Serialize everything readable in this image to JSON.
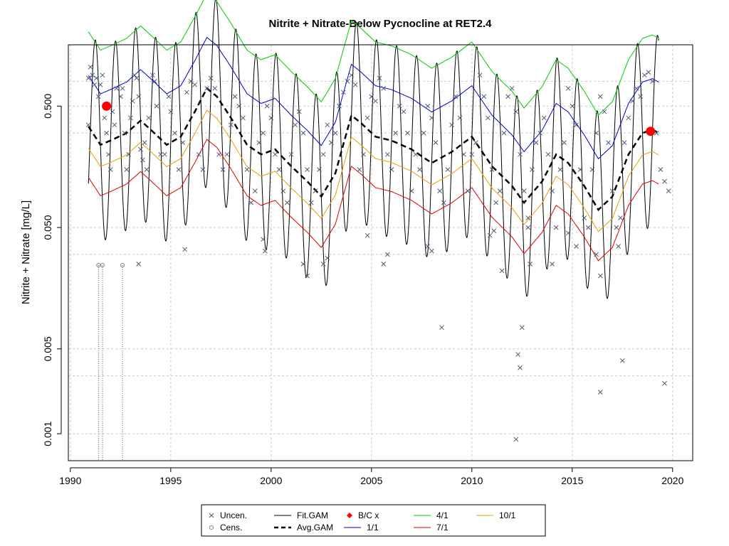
{
  "chart_data": {
    "type": "scatter",
    "title": "Nitrite + Nitrate-Below Pycnocline at RET2.4",
    "xlabel": "",
    "ylabel": "Nitrite + Nitrate [mg/L]",
    "y_scale": "log",
    "xlim": [
      1989.9,
      2021.0
    ],
    "ylim": [
      0.0006,
      1.6
    ],
    "x_ticks": [
      1990,
      1995,
      2000,
      2005,
      2010,
      2015,
      2020
    ],
    "x_tick_labels": [
      "1990",
      "1995",
      "2000",
      "2005",
      "2010",
      "2015",
      "2020"
    ],
    "y_ticks": [
      0.001,
      0.005,
      0.05,
      0.5
    ],
    "y_tick_labels": [
      "0.001",
      "0.005",
      "0.050",
      "0.500"
    ],
    "y_grid": [
      0.001,
      0.003,
      0.005,
      0.03,
      0.05,
      0.3,
      0.5,
      0.8
    ],
    "grid": true,
    "legend": {
      "position": "bottom",
      "entries": [
        {
          "label": "Uncen.",
          "symbol": "x",
          "color": "#4a5a7a"
        },
        {
          "label": "Cens.",
          "symbol": "o",
          "color": "#808080"
        },
        {
          "label": "Fit.GAM",
          "symbol": "line",
          "color": "#000000"
        },
        {
          "label": "Avg.GAM",
          "symbol": "dash",
          "color": "#000000"
        },
        {
          "label": "B/C x",
          "symbol": "diamond",
          "color": "#ff0000"
        },
        {
          "label": "1/1",
          "symbol": "line",
          "color": "#0000cc"
        },
        {
          "label": "4/1",
          "symbol": "line",
          "color": "#00cc00"
        },
        {
          "label": "7/1",
          "symbol": "line",
          "color": "#dd0000"
        },
        {
          "label": "10/1",
          "symbol": "line",
          "color": "#e6a000"
        }
      ]
    },
    "uncensored_points": [
      [
        1990.9,
        0.35
      ],
      [
        1990.9,
        0.85
      ],
      [
        1991.0,
        1.05
      ],
      [
        1991.1,
        0.9
      ],
      [
        1991.2,
        0.75
      ],
      [
        1991.3,
        0.85
      ],
      [
        1991.4,
        0.6
      ],
      [
        1991.5,
        0.75
      ],
      [
        1991.6,
        0.9
      ],
      [
        1991.7,
        0.4
      ],
      [
        1991.8,
        0.3
      ],
      [
        1991.9,
        0.2
      ],
      [
        1992.0,
        0.15
      ],
      [
        1992.1,
        0.45
      ],
      [
        1992.2,
        0.35
      ],
      [
        1992.3,
        0.7
      ],
      [
        1992.5,
        0.6
      ],
      [
        1992.6,
        0.7
      ],
      [
        1992.7,
        0.3
      ],
      [
        1992.8,
        0.15
      ],
      [
        1992.9,
        0.2
      ],
      [
        1993.0,
        0.4
      ],
      [
        1993.1,
        0.55
      ],
      [
        1993.2,
        0.9
      ],
      [
        1993.3,
        0.85
      ],
      [
        1993.4,
        0.6
      ],
      [
        1993.5,
        0.22
      ],
      [
        1993.6,
        0.18
      ],
      [
        1993.7,
        0.25
      ],
      [
        1993.8,
        0.15
      ],
      [
        1993.9,
        0.4
      ],
      [
        1994.1,
        0.9
      ],
      [
        1994.2,
        0.8
      ],
      [
        1994.3,
        0.5
      ],
      [
        1994.5,
        0.2
      ],
      [
        1994.7,
        0.2
      ],
      [
        1994.9,
        0.6
      ],
      [
        1995.0,
        0.45
      ],
      [
        1995.2,
        0.3
      ],
      [
        1995.4,
        0.15
      ],
      [
        1995.6,
        0.25
      ],
      [
        1995.8,
        0.65
      ],
      [
        1996.0,
        0.8
      ],
      [
        1996.2,
        0.75
      ],
      [
        1996.4,
        0.2
      ],
      [
        1996.6,
        0.15
      ],
      [
        1996.8,
        0.7
      ],
      [
        1997.0,
        0.85
      ],
      [
        1997.2,
        0.7
      ],
      [
        1997.4,
        0.2
      ],
      [
        1997.6,
        0.15
      ],
      [
        1997.8,
        0.2
      ],
      [
        1998.0,
        0.35
      ],
      [
        1998.2,
        0.6
      ],
      [
        1998.4,
        0.5
      ],
      [
        1998.6,
        0.4
      ],
      [
        1998.8,
        0.15
      ],
      [
        1999.0,
        0.08
      ],
      [
        1999.2,
        0.1
      ],
      [
        1999.4,
        0.25
      ],
      [
        1999.6,
        0.3
      ],
      [
        1999.8,
        0.5
      ],
      [
        2000.0,
        0.4
      ],
      [
        2000.2,
        0.2
      ],
      [
        2000.4,
        0.15
      ],
      [
        2000.6,
        0.1
      ],
      [
        2000.8,
        0.08
      ],
      [
        2001.0,
        0.2
      ],
      [
        2001.2,
        0.35
      ],
      [
        2001.4,
        0.45
      ],
      [
        2001.6,
        0.3
      ],
      [
        2001.8,
        0.15
      ],
      [
        2002.0,
        0.08
      ],
      [
        2002.2,
        0.1
      ],
      [
        2002.4,
        0.15
      ],
      [
        2002.6,
        0.2
      ],
      [
        2002.8,
        0.35
      ],
      [
        2003.0,
        0.25
      ],
      [
        2003.2,
        0.3
      ],
      [
        2003.4,
        0.5
      ],
      [
        2003.6,
        0.65
      ],
      [
        2003.8,
        0.8
      ],
      [
        2004.0,
        0.9
      ],
      [
        2004.2,
        0.75
      ],
      [
        2004.4,
        0.15
      ],
      [
        2004.6,
        0.2
      ],
      [
        2004.8,
        0.4
      ],
      [
        2005.0,
        0.6
      ],
      [
        2005.2,
        0.55
      ],
      [
        2005.4,
        0.85
      ],
      [
        2005.6,
        0.7
      ],
      [
        2005.8,
        0.2
      ],
      [
        2006.0,
        0.15
      ],
      [
        2006.2,
        0.3
      ],
      [
        2006.4,
        0.5
      ],
      [
        2006.6,
        0.45
      ],
      [
        2006.8,
        0.3
      ],
      [
        2007.0,
        0.1
      ],
      [
        2007.2,
        0.2
      ],
      [
        2007.4,
        0.15
      ],
      [
        2007.6,
        0.3
      ],
      [
        2007.8,
        0.5
      ],
      [
        2008.0,
        0.4
      ],
      [
        2008.2,
        0.25
      ],
      [
        2008.4,
        0.1
      ],
      [
        2008.6,
        0.08
      ],
      [
        2008.8,
        0.15
      ],
      [
        2009.0,
        0.35
      ],
      [
        2009.2,
        0.6
      ],
      [
        2009.4,
        0.4
      ],
      [
        2009.6,
        0.2
      ],
      [
        2009.8,
        0.1
      ],
      [
        2010.0,
        0.2
      ],
      [
        2010.2,
        0.25
      ],
      [
        2010.4,
        0.9
      ],
      [
        2010.6,
        0.6
      ],
      [
        2010.8,
        0.4
      ],
      [
        2011.0,
        0.15
      ],
      [
        2011.2,
        0.08
      ],
      [
        2011.4,
        0.1
      ],
      [
        2011.6,
        0.3
      ],
      [
        2011.8,
        0.6
      ],
      [
        2012.0,
        0.7
      ],
      [
        2012.2,
        0.45
      ],
      [
        2012.4,
        0.2
      ],
      [
        2012.6,
        0.1
      ],
      [
        2012.8,
        0.05
      ],
      [
        2013.0,
        0.15
      ],
      [
        2013.2,
        0.25
      ],
      [
        2013.4,
        0.3
      ],
      [
        2013.6,
        0.4
      ],
      [
        2013.8,
        0.2
      ],
      [
        2014.0,
        0.1
      ],
      [
        2014.2,
        0.05
      ],
      [
        2014.4,
        0.15
      ],
      [
        2014.6,
        0.25
      ],
      [
        2014.8,
        0.7
      ],
      [
        2015.0,
        0.5
      ],
      [
        2015.2,
        0.35
      ],
      [
        2015.4,
        0.15
      ],
      [
        2015.6,
        0.06
      ],
      [
        2015.8,
        0.05
      ],
      [
        2016.0,
        0.15
      ],
      [
        2016.2,
        0.3
      ],
      [
        2016.4,
        0.6
      ],
      [
        2016.6,
        0.45
      ],
      [
        2016.8,
        0.25
      ],
      [
        2017.0,
        0.1
      ],
      [
        2017.2,
        0.05
      ],
      [
        2017.4,
        0.06
      ],
      [
        2017.6,
        0.25
      ],
      [
        2017.8,
        0.4
      ],
      [
        2018.0,
        0.55
      ],
      [
        2018.2,
        0.7
      ],
      [
        2018.4,
        0.6
      ],
      [
        2018.6,
        0.9
      ],
      [
        2018.8,
        0.95
      ],
      [
        2019.0,
        0.8
      ],
      [
        2019.2,
        0.3
      ],
      [
        2019.4,
        0.15
      ],
      [
        2019.6,
        0.12
      ],
      [
        2019.8,
        0.1
      ],
      [
        2008.5,
        0.0075
      ],
      [
        2012.3,
        0.0045
      ],
      [
        2012.5,
        0.0075
      ],
      [
        2012.4,
        0.0035
      ],
      [
        2012.2,
        0.0009
      ],
      [
        2016.4,
        0.0022
      ],
      [
        2017.5,
        0.004
      ],
      [
        2019.6,
        0.0026
      ],
      [
        2001.8,
        0.02
      ],
      [
        2001.6,
        0.025
      ],
      [
        2002.6,
        0.025
      ],
      [
        2002.8,
        0.028
      ],
      [
        2007.8,
        0.035
      ],
      [
        2008.0,
        0.032
      ],
      [
        2011.5,
        0.022
      ],
      [
        2012.9,
        0.025
      ],
      [
        2014.0,
        0.025
      ],
      [
        2015.2,
        0.035
      ],
      [
        2016.2,
        0.03
      ],
      [
        2016.4,
        0.02
      ],
      [
        2017.3,
        0.035
      ],
      [
        1995.7,
        0.033
      ],
      [
        1993.4,
        0.025
      ],
      [
        1999.6,
        0.04
      ],
      [
        1999.7,
        0.032
      ],
      [
        2004.8,
        0.043
      ],
      [
        2005.8,
        0.03
      ],
      [
        2005.6,
        0.025
      ],
      [
        2011.1,
        0.047
      ],
      [
        2010.9,
        0.043
      ],
      [
        2012.8,
        0.06
      ],
      [
        2014.8,
        0.045
      ]
    ],
    "censored_points": [
      [
        1991.4,
        0.0245
      ],
      [
        1991.6,
        0.0245
      ],
      [
        1992.6,
        0.0245
      ]
    ],
    "bc_points": [
      [
        1991.8,
        0.5
      ],
      [
        2018.9,
        0.31
      ]
    ],
    "series": [
      {
        "name": "Fit.GAM",
        "color": "#000000",
        "style": "solid",
        "kind": "seasonal",
        "amp": 1.6,
        "peak_phase": 0.25
      },
      {
        "name": "Avg.GAM",
        "color": "#000000",
        "style": "dash",
        "kind": "offset",
        "offset": 0.0
      },
      {
        "name": "1/1",
        "color": "#0000cc",
        "style": "solid",
        "kind": "offset",
        "offset": 0.42
      },
      {
        "name": "4/1",
        "color": "#00cc00",
        "style": "solid",
        "kind": "offset",
        "offset": 0.78
      },
      {
        "name": "7/1",
        "color": "#dd0000",
        "style": "solid",
        "kind": "offset",
        "offset": -0.42
      },
      {
        "name": "10/1",
        "color": "#e6a000",
        "style": "solid",
        "kind": "offset",
        "offset": -0.18
      }
    ],
    "avg_gam_trend": [
      [
        1990.9,
        0.34
      ],
      [
        1991.5,
        0.24
      ],
      [
        1992.0,
        0.26
      ],
      [
        1992.8,
        0.3
      ],
      [
        1993.5,
        0.38
      ],
      [
        1994.0,
        0.32
      ],
      [
        1994.8,
        0.24
      ],
      [
        1995.5,
        0.28
      ],
      [
        1996.2,
        0.45
      ],
      [
        1996.8,
        0.7
      ],
      [
        1997.3,
        0.6
      ],
      [
        1998.0,
        0.4
      ],
      [
        1998.8,
        0.24
      ],
      [
        1999.5,
        0.2
      ],
      [
        2000.2,
        0.22
      ],
      [
        2001.0,
        0.16
      ],
      [
        2001.8,
        0.12
      ],
      [
        2002.5,
        0.09
      ],
      [
        2003.2,
        0.14
      ],
      [
        2004.0,
        0.42
      ],
      [
        2004.5,
        0.36
      ],
      [
        2005.2,
        0.28
      ],
      [
        2006.0,
        0.26
      ],
      [
        2007.0,
        0.22
      ],
      [
        2008.0,
        0.17
      ],
      [
        2009.0,
        0.21
      ],
      [
        2010.0,
        0.28
      ],
      [
        2011.0,
        0.16
      ],
      [
        2012.0,
        0.11
      ],
      [
        2012.6,
        0.08
      ],
      [
        2013.5,
        0.12
      ],
      [
        2014.2,
        0.2
      ],
      [
        2014.8,
        0.17
      ],
      [
        2015.6,
        0.11
      ],
      [
        2016.3,
        0.07
      ],
      [
        2017.0,
        0.09
      ],
      [
        2017.8,
        0.2
      ],
      [
        2018.5,
        0.3
      ],
      [
        2019.0,
        0.32
      ],
      [
        2019.3,
        0.3
      ]
    ],
    "vlines_at_censored": true
  }
}
